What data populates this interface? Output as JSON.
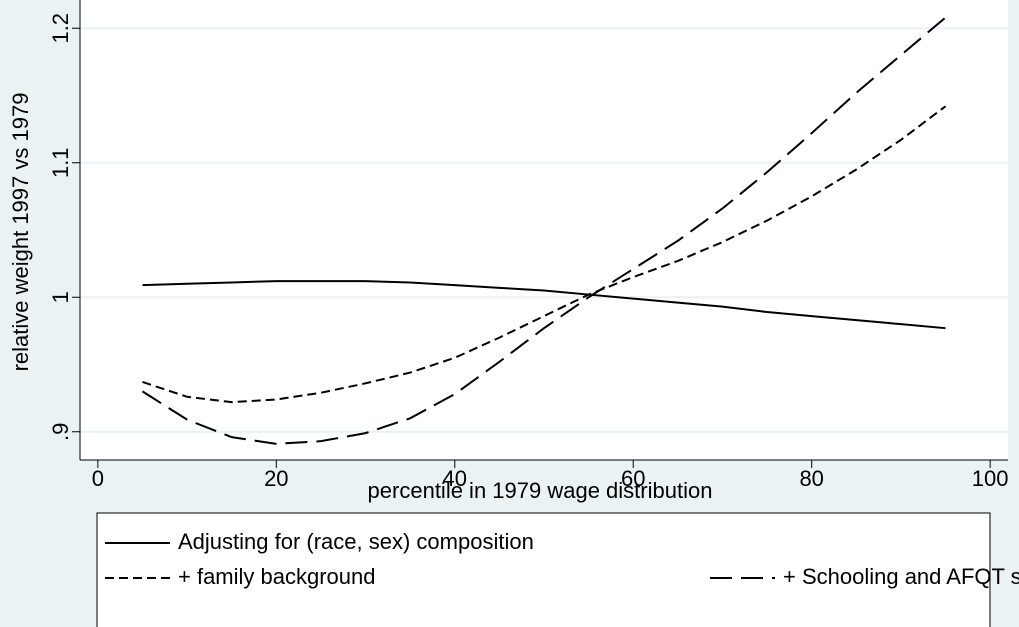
{
  "chart_data": {
    "type": "line",
    "xlabel": "percentile in 1979 wage distribution",
    "ylabel": "relative weight 1997 vs 1979",
    "x": [
      5,
      10,
      15,
      20,
      25,
      30,
      35,
      40,
      45,
      50,
      55,
      60,
      65,
      70,
      75,
      80,
      85,
      90,
      95
    ],
    "series": [
      {
        "name": "Adjusting for (race, sex) composition",
        "color": "#000000",
        "linestyle": "solid",
        "values": [
          1.009,
          1.01,
          1.011,
          1.012,
          1.012,
          1.012,
          1.011,
          1.009,
          1.007,
          1.005,
          1.002,
          0.999,
          0.996,
          0.993,
          0.989,
          0.986,
          0.983,
          0.98,
          0.977
        ]
      },
      {
        "name": "+ family background",
        "color": "#000000",
        "linestyle": "dash",
        "values": [
          0.937,
          0.926,
          0.922,
          0.924,
          0.929,
          0.936,
          0.944,
          0.955,
          0.97,
          0.986,
          1.002,
          1.015,
          1.027,
          1.041,
          1.057,
          1.075,
          1.095,
          1.117,
          1.142
        ]
      },
      {
        "name": "+ Schooling and AFQT score",
        "color": "#000000",
        "linestyle": "longdash",
        "values": [
          0.93,
          0.909,
          0.896,
          0.891,
          0.893,
          0.899,
          0.91,
          0.928,
          0.952,
          0.977,
          1.0,
          1.021,
          1.042,
          1.066,
          1.093,
          1.122,
          1.152,
          1.18,
          1.208
        ]
      }
    ],
    "xlim": [
      -2,
      102
    ],
    "ylim": [
      0.879,
      1.221
    ],
    "xticks": [
      0,
      20,
      40,
      60,
      80,
      100
    ],
    "yticks": [
      {
        "value": 0.9,
        "label": ".9"
      },
      1,
      1.1,
      1.2
    ],
    "grid": true
  }
}
